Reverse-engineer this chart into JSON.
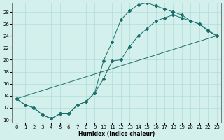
{
  "xlabel": "Humidex (Indice chaleur)",
  "bg_color": "#d4f0ec",
  "line_color": "#1a6e6a",
  "grid_color": "#b0dcd8",
  "xlim": [
    -0.5,
    23.5
  ],
  "ylim": [
    9.5,
    29.5
  ],
  "xticks": [
    0,
    1,
    2,
    3,
    4,
    5,
    6,
    7,
    8,
    9,
    10,
    11,
    12,
    13,
    14,
    15,
    16,
    17,
    18,
    19,
    20,
    21,
    22,
    23
  ],
  "yticks": [
    10,
    12,
    14,
    16,
    18,
    20,
    22,
    24,
    26,
    28
  ],
  "curve_upper_x": [
    0,
    1,
    2,
    3,
    4,
    5,
    6,
    7,
    8,
    9,
    10,
    11,
    12,
    13,
    14,
    15,
    16,
    17,
    18
  ],
  "curve_upper_y": [
    13.5,
    12.5,
    12.0,
    10.8,
    10.2,
    11.0,
    11.0,
    12.5,
    13.0,
    14.5,
    19.8,
    23.0,
    26.7,
    28.2,
    29.2,
    29.5,
    29.0,
    28.5,
    28.0
  ],
  "curve_middle_x": [
    0,
    1,
    2,
    3,
    4,
    5,
    6,
    7,
    8,
    9,
    10,
    11,
    12,
    13,
    14,
    15,
    16,
    17,
    18,
    19,
    20,
    21,
    22,
    23
  ],
  "curve_middle_y": [
    13.5,
    12.5,
    12.0,
    10.8,
    10.2,
    11.0,
    11.0,
    12.5,
    13.0,
    14.5,
    16.8,
    19.8,
    20.0,
    22.2,
    24.0,
    25.2,
    26.5,
    27.0,
    27.5,
    27.0,
    26.5,
    26.0,
    25.0,
    24.0
  ],
  "curve_top_end_x": [
    18,
    19,
    20,
    21,
    22,
    23
  ],
  "curve_top_end_y": [
    28.0,
    27.5,
    26.5,
    26.0,
    24.8,
    24.0
  ]
}
